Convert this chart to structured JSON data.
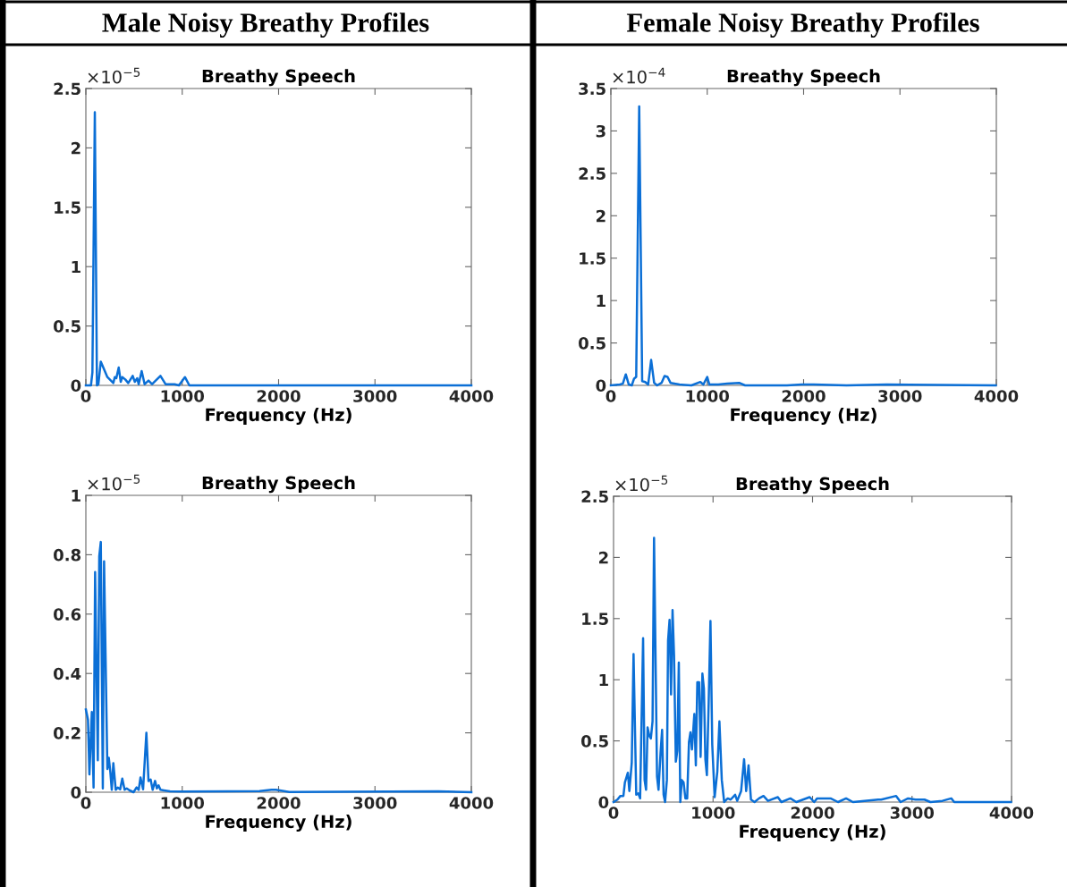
{
  "chart_data": [
    {
      "type": "line",
      "title": "Breathy Speech",
      "xlabel": "Frequency (Hz)",
      "annotations": [
        "×10$^{−5}$",
        "Male Noisy Breathy Profiles"
      ],
      "xlim": [
        0,
        4000
      ],
      "xticks": [
        0,
        1000,
        2000,
        3000,
        4000
      ],
      "ylim": [
        0,
        2.5
      ],
      "yticks": [
        0,
        0.5,
        1,
        1.5,
        2,
        2.5
      ],
      "grid": false,
      "legend": false,
      "series": [
        {
          "color": "#0b6fd6",
          "x": [
            0,
            53,
            68,
            93,
            115,
            130,
            155,
            176,
            223,
            285,
            300,
            316,
            341,
            362,
            378,
            409,
            440,
            486,
            508,
            533,
            548,
            579,
            610,
            650,
            687,
            774,
            827,
            873,
            920,
            966,
            1028,
            1074,
            1183,
            1492,
            4000
          ],
          "values": [
            0,
            0,
            0.11,
            2.3,
            0,
            0.01,
            0.2,
            0.16,
            0.07,
            0.02,
            0.07,
            0.06,
            0.15,
            0.03,
            0.07,
            0.05,
            0.02,
            0.08,
            0.03,
            0.06,
            0.01,
            0.12,
            0.01,
            0.04,
            0.01,
            0.08,
            0.01,
            0.01,
            0.01,
            0,
            0.07,
            0,
            0,
            0,
            0
          ]
        }
      ]
    },
    {
      "type": "line",
      "title": "Breathy Speech",
      "xlabel": "Frequency (Hz)",
      "annotations": [
        "×10$^{−4}$",
        "Female Noisy Breathy Profiles"
      ],
      "xlim": [
        0,
        4000
      ],
      "xticks": [
        0,
        1000,
        2000,
        3000,
        4000
      ],
      "ylim": [
        0,
        3.5
      ],
      "yticks": [
        0,
        0.5,
        1,
        1.5,
        2,
        2.5,
        3,
        3.5
      ],
      "grid": false,
      "legend": false,
      "series": [
        {
          "color": "#0b6fd6",
          "x": [
            0,
            93,
            124,
            155,
            186,
            217,
            241,
            263,
            294,
            325,
            356,
            387,
            418,
            449,
            480,
            526,
            557,
            588,
            619,
            712,
            836,
            929,
            960,
            1000,
            1022,
            1115,
            1207,
            1331,
            1393,
            1827,
            1981,
            2105,
            2446,
            2864,
            3994
          ],
          "values": [
            0,
            0.01,
            0.02,
            0.13,
            0.01,
            0,
            0.08,
            0.1,
            3.29,
            0.05,
            0.04,
            0.01,
            0.3,
            0.03,
            0,
            0.03,
            0.11,
            0.1,
            0.03,
            0.01,
            0,
            0.04,
            0.01,
            0.1,
            0.01,
            0.01,
            0.02,
            0.03,
            0,
            0,
            0.01,
            0.01,
            0,
            0.01,
            0
          ]
        }
      ]
    },
    {
      "type": "line",
      "title": "Breathy Speech",
      "xlabel": "Frequency (Hz)",
      "annotations": [
        "×10$^{−5}$"
      ],
      "xlim": [
        0,
        4000
      ],
      "xticks": [
        0,
        1000,
        2000,
        3000,
        4000
      ],
      "ylim": [
        0,
        1
      ],
      "yticks": [
        0,
        0.2,
        0.4,
        0.6,
        0.8,
        1
      ],
      "grid": false,
      "legend": false,
      "series": [
        {
          "color": "#0b6fd6",
          "x": [
            0,
            22,
            37,
            62,
            80,
            96,
            124,
            139,
            155,
            176,
            189,
            223,
            238,
            254,
            269,
            285,
            310,
            331,
            356,
            378,
            402,
            424,
            455,
            495,
            526,
            548,
            567,
            594,
            628,
            650,
            672,
            693,
            718,
            737,
            755,
            774,
            811,
            873,
            997,
            1802,
            1926,
            1972,
            2111,
            3659,
            4000
          ],
          "values": [
            0.279,
            0.244,
            0.06,
            0.27,
            0.016,
            0.742,
            0.108,
            0.795,
            0.843,
            0.013,
            0.778,
            0.078,
            0.116,
            0.068,
            0.008,
            0.098,
            0.008,
            0.016,
            0.01,
            0.046,
            0.008,
            0.013,
            0.006,
            0,
            0.016,
            0.008,
            0.05,
            0.01,
            0.2,
            0.038,
            0.043,
            0.008,
            0.038,
            0.013,
            0.023,
            0.008,
            0.006,
            0.003,
            0.002,
            0.004,
            0.008,
            0.008,
            0.001,
            0.003,
            0
          ]
        }
      ]
    },
    {
      "type": "line",
      "title": "Breathy Speech",
      "xlabel": "Frequency (Hz)",
      "annotations": [
        "×10$^{−5}$"
      ],
      "xlim": [
        0,
        4000
      ],
      "xticks": [
        0,
        1000,
        2000,
        3000,
        4000
      ],
      "ylim": [
        0,
        2.5
      ],
      "yticks": [
        0,
        0.5,
        1,
        1.5,
        2,
        2.5
      ],
      "grid": false,
      "legend": false,
      "series": [
        {
          "color": "#0b6fd6",
          "x": [
            0,
            39,
            69,
            99,
            114,
            144,
            159,
            183,
            201,
            228,
            249,
            267,
            297,
            312,
            327,
            342,
            360,
            375,
            392,
            407,
            437,
            452,
            473,
            488,
            503,
            518,
            536,
            548,
            563,
            578,
            593,
            608,
            626,
            641,
            656,
            671,
            686,
            704,
            722,
            740,
            758,
            773,
            788,
            812,
            827,
            842,
            860,
            875,
            893,
            908,
            923,
            938,
            956,
            974,
            992,
            1016,
            1043,
            1064,
            1088,
            1112,
            1147,
            1177,
            1222,
            1243,
            1282,
            1312,
            1333,
            1357,
            1381,
            1417,
            1462,
            1507,
            1552,
            1651,
            1687,
            1777,
            1837,
            1971,
            2016,
            2046,
            2121,
            2181,
            2256,
            2337,
            2406,
            2660,
            2690,
            2840,
            2885,
            2960,
            3035,
            3125,
            3185,
            3305,
            3394,
            3424,
            3694,
            3994
          ],
          "values": [
            0,
            0.02,
            0.05,
            0.05,
            0.16,
            0.24,
            0.09,
            0.32,
            1.21,
            0.06,
            0.07,
            0.03,
            1.34,
            0.18,
            0.1,
            0.61,
            0.54,
            0.52,
            0.66,
            2.16,
            0.21,
            0.1,
            0.41,
            0.59,
            0.06,
            0,
            0.18,
            1.32,
            1.49,
            0.88,
            1.57,
            1.2,
            0.33,
            0.42,
            1.14,
            0,
            0.18,
            0.16,
            0.03,
            0.03,
            0.49,
            0.57,
            0.43,
            0.72,
            0.3,
            0.98,
            0.98,
            0.37,
            1.05,
            0.93,
            0.35,
            0.22,
            0.81,
            1.48,
            0.47,
            0.04,
            0.25,
            0.66,
            0.18,
            0,
            0.03,
            0.02,
            0.06,
            0.01,
            0.09,
            0.35,
            0.09,
            0.3,
            0.02,
            0,
            0.03,
            0.05,
            0.01,
            0.04,
            0,
            0.03,
            0,
            0.04,
            0,
            0.03,
            0.03,
            0.03,
            0,
            0.03,
            0,
            0.02,
            0.02,
            0.05,
            0,
            0.03,
            0.02,
            0.02,
            0,
            0.01,
            0.03,
            0,
            0,
            0
          ]
        }
      ]
    }
  ]
}
